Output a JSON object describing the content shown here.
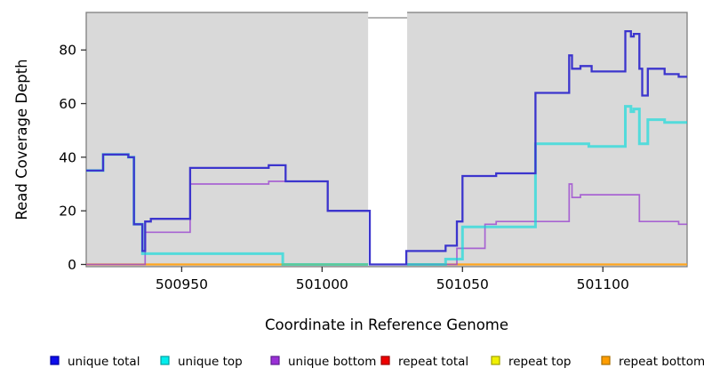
{
  "chart_data": {
    "type": "line",
    "step": true,
    "title": "",
    "xlabel": "Coordinate in Reference Genome",
    "ylabel": "Read Coverage Depth",
    "xlim": [
      500916,
      501130
    ],
    "ylim": [
      0,
      94
    ],
    "x_ticks": [
      500950,
      501000,
      501050,
      501100
    ],
    "y_ticks": [
      0,
      20,
      40,
      60,
      80
    ],
    "grid": false,
    "legend_position": "bottom",
    "background": "#d9d9d9",
    "border_color": "#7f7f7f",
    "gap_region": {
      "from": 501016.4,
      "to": 501030.3
    },
    "draw_order": [
      "repeat total",
      "repeat top",
      "repeat bottom",
      "unique bottom",
      "unique top",
      "unique total"
    ],
    "series": [
      {
        "name": "unique total",
        "color": "#3c35cd",
        "legend_color": "#0d0deb",
        "legend_border": "#0000a0",
        "width": 2.3,
        "opacity": 1,
        "points": [
          [
            500916,
            35
          ],
          [
            500922,
            41
          ],
          [
            500931,
            40
          ],
          [
            500933,
            15
          ],
          [
            500936,
            5
          ],
          [
            500937,
            16
          ],
          [
            500939,
            17
          ],
          [
            500953,
            36
          ],
          [
            500981,
            37
          ],
          [
            500987,
            31
          ],
          [
            501002,
            20
          ],
          [
            501017,
            0
          ],
          [
            501030,
            5
          ],
          [
            501044,
            7
          ],
          [
            501048,
            16
          ],
          [
            501050,
            33
          ],
          [
            501062,
            34
          ],
          [
            501076,
            64
          ],
          [
            501088,
            78
          ],
          [
            501089,
            73
          ],
          [
            501092,
            74
          ],
          [
            501096,
            72
          ],
          [
            501108,
            87
          ],
          [
            501110,
            85
          ],
          [
            501111,
            86
          ],
          [
            501113,
            73
          ],
          [
            501114,
            63
          ],
          [
            501116,
            73
          ],
          [
            501122,
            71
          ],
          [
            501127,
            70
          ]
        ]
      },
      {
        "name": "unique top",
        "color": "#00dcdc",
        "legend_color": "#00eded",
        "legend_border": "#00a0a0",
        "width": 3.0,
        "opacity": 0.62,
        "points": [
          [
            500916,
            35
          ],
          [
            500922,
            41
          ],
          [
            500931,
            40
          ],
          [
            500933,
            15
          ],
          [
            500936,
            4
          ],
          [
            500986,
            0
          ],
          [
            501044,
            2
          ],
          [
            501050,
            14
          ],
          [
            501076,
            45
          ],
          [
            501095,
            44
          ],
          [
            501108,
            59
          ],
          [
            501110,
            57
          ],
          [
            501111,
            58
          ],
          [
            501113,
            45
          ],
          [
            501116,
            54
          ],
          [
            501122,
            53
          ]
        ]
      },
      {
        "name": "unique bottom",
        "color": "#9b46cf",
        "legend_color": "#9a2fd6",
        "legend_border": "#5e1d8f",
        "width": 1.7,
        "opacity": 0.8,
        "points": [
          [
            500916,
            0
          ],
          [
            500937,
            12
          ],
          [
            500953,
            30
          ],
          [
            500981,
            31
          ],
          [
            501002,
            20
          ],
          [
            501017,
            0
          ],
          [
            501048,
            6
          ],
          [
            501058,
            15
          ],
          [
            501062,
            16
          ],
          [
            501088,
            30
          ],
          [
            501089,
            25
          ],
          [
            501092,
            26
          ],
          [
            501113,
            16
          ],
          [
            501127,
            15
          ]
        ]
      },
      {
        "name": "repeat total",
        "color": "#e03030",
        "legend_color": "#ee0000",
        "legend_border": "#990000",
        "width": 2.0,
        "opacity": 1,
        "points": [
          [
            500916,
            0
          ]
        ]
      },
      {
        "name": "repeat top",
        "color": "#f0e62e",
        "legend_color": "#f0f000",
        "legend_border": "#a0a000",
        "width": 2.0,
        "opacity": 1,
        "points": [
          [
            500916,
            0
          ]
        ]
      },
      {
        "name": "repeat bottom",
        "color": "#ffa51e",
        "legend_color": "#ff9d00",
        "legend_border": "#a86f00",
        "width": 2.2,
        "opacity": 1,
        "points": [
          [
            500916,
            0
          ]
        ]
      }
    ]
  }
}
